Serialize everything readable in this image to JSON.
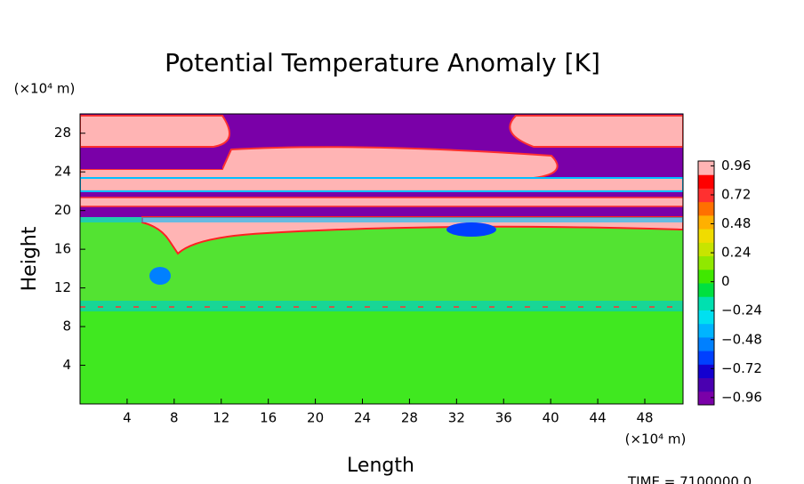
{
  "chart_data": {
    "type": "heatmap",
    "title": "Potential Temperature Anomaly [K]",
    "xlabel": "Length",
    "ylabel": "Height",
    "x_unit": "(×10⁴ m)",
    "y_unit": "(×10⁴ m)",
    "footer": "TIME = 7100000.0",
    "xlim": [
      0,
      51.25
    ],
    "ylim": [
      0,
      30
    ],
    "xticks": [
      4,
      8,
      12,
      16,
      20,
      24,
      28,
      32,
      36,
      40,
      44,
      48
    ],
    "yticks": [
      4,
      8,
      12,
      16,
      20,
      24,
      28
    ],
    "clim": [
      -1.02,
      1.0
    ],
    "cticks": [
      {
        "value": 0.96,
        "label": "0.96"
      },
      {
        "value": 0.72,
        "label": "0.72"
      },
      {
        "value": 0.48,
        "label": "0.48"
      },
      {
        "value": 0.24,
        "label": "0.24"
      },
      0,
      {
        "value": -0.24,
        "label": "−0.24"
      },
      {
        "value": -0.48,
        "label": "−0.48"
      },
      {
        "value": -0.72,
        "label": "−0.72"
      },
      {
        "value": -0.96,
        "label": "−0.96"
      }
    ],
    "colormap": [
      "#7a00a8",
      "#4a00b0",
      "#1400d0",
      "#0040ff",
      "#0080ff",
      "#00b4ff",
      "#00e0f0",
      "#00e0b0",
      "#00e040",
      "#40e800",
      "#90e800",
      "#c8e400",
      "#f0dc00",
      "#ffb000",
      "#ff7000",
      "#ff3030",
      "#ff0000",
      "#ffb4b4"
    ]
  }
}
